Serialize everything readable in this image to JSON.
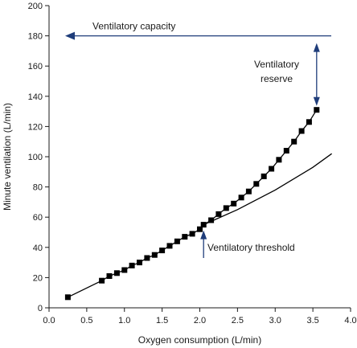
{
  "chart_data": {
    "type": "line",
    "title": "",
    "xlabel": "Oxygen consumption (L/min)",
    "ylabel": "Minute ventilation (L/min)",
    "xlim": [
      0,
      4
    ],
    "ylim": [
      0,
      200
    ],
    "x_ticks": [
      0,
      0.5,
      1,
      1.5,
      2,
      2.5,
      3,
      3.5,
      4
    ],
    "x_tick_labels": [
      "0.0",
      "0.5",
      "1.0",
      "1.5",
      "2.0",
      "2.5",
      "3.0",
      "3.5",
      "4.0"
    ],
    "y_ticks": [
      0,
      20,
      40,
      60,
      80,
      100,
      120,
      140,
      160,
      180,
      200
    ],
    "y_tick_labels": [
      "0",
      "20",
      "40",
      "60",
      "80",
      "100",
      "120",
      "140",
      "160",
      "180",
      "200"
    ],
    "grid": false,
    "series": [
      {
        "marker": "square",
        "x": [
          0.25,
          0.7,
          0.8,
          0.9,
          1.0,
          1.1,
          1.2,
          1.3,
          1.4,
          1.5,
          1.6,
          1.7,
          1.8,
          1.9,
          2.0,
          2.05,
          2.15,
          2.25,
          2.35,
          2.45,
          2.55,
          2.65,
          2.75,
          2.85,
          2.95,
          3.05,
          3.15,
          3.25,
          3.35,
          3.45,
          3.55
        ],
        "y": [
          7,
          18,
          21,
          23,
          25,
          28,
          30,
          33,
          35,
          38,
          41,
          44,
          47,
          49,
          52,
          55,
          58,
          62,
          66,
          69,
          73,
          77,
          82,
          87,
          92,
          98,
          104,
          110,
          117,
          123,
          131
        ]
      },
      {
        "marker": "none",
        "x": [
          2.05,
          2.5,
          3.0,
          3.5,
          3.75
        ],
        "y": [
          55,
          65,
          78,
          93,
          102
        ]
      }
    ],
    "annotations": [
      {
        "text": "Ventilatory capacity",
        "value": 180
      },
      {
        "text_lines": [
          "Ventilatory",
          "reserve"
        ]
      },
      {
        "text": "Ventilatory threshold",
        "x": 2.05,
        "y": 55
      }
    ]
  },
  "colors": {
    "arrow": "#1f3d7a",
    "series": "#000000"
  }
}
